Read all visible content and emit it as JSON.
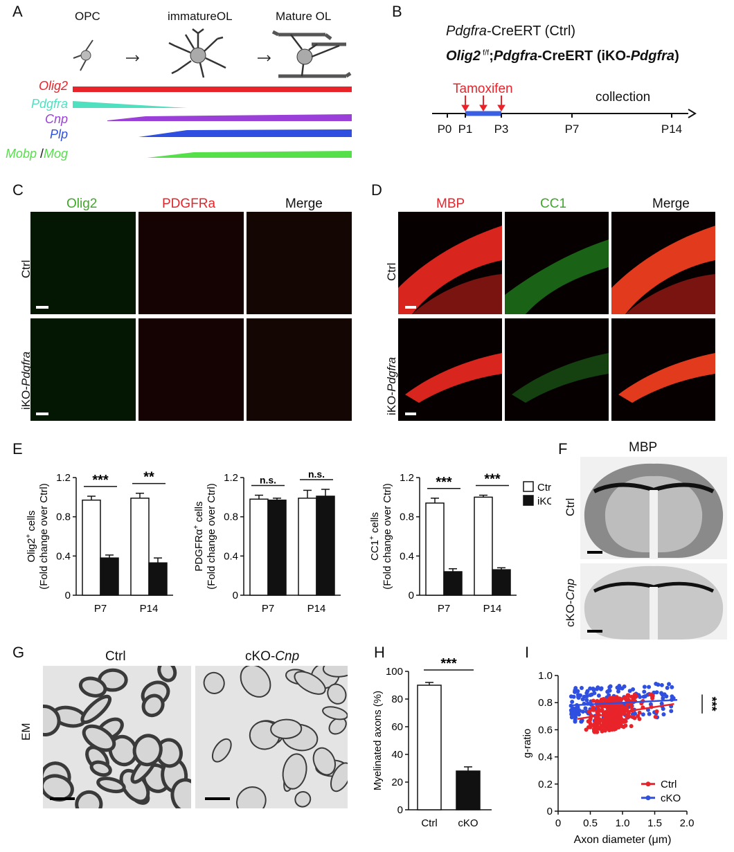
{
  "panels": {
    "a": "A",
    "b": "B",
    "c": "C",
    "d": "D",
    "e": "E",
    "f": "F",
    "g": "G",
    "h": "H",
    "i": "I"
  },
  "panelA": {
    "stages": [
      "OPC",
      "immatureOL",
      "Mature OL"
    ],
    "genes": [
      {
        "name": "Olig2",
        "color": "#e8242a"
      },
      {
        "name": "Pdgfra",
        "color": "#4fe0c0"
      },
      {
        "name": "Cnp",
        "color": "#9a3fd8"
      },
      {
        "name": "Plp",
        "color": "#2f4fe0"
      },
      {
        "name": "Mobp",
        "sep": "/",
        "name2": "Mog",
        "color": "#55e04a"
      }
    ]
  },
  "panelB": {
    "line1_italic": "Pdgfra",
    "line1_rest": "-CreERT  (Ctrl)",
    "line2_a": "Olig2",
    "line2_sup": " f/f",
    "line2_b": ";",
    "line2_c": "Pdgfra",
    "line2_d": "-CreERT  (iKO-",
    "line2_e": "Pdgfra",
    "line2_f": ")",
    "tamoxifen": "Tamoxifen",
    "collection": "collection",
    "ticks": [
      "P0",
      "P1",
      "P3",
      "P7",
      "P14"
    ]
  },
  "panelC": {
    "headers": [
      "Olig2",
      "PDGFRa",
      "Merge"
    ],
    "rows": [
      "Ctrl",
      "iKO-",
      "Pdgfra"
    ]
  },
  "panelD": {
    "headers": [
      "MBP",
      "CC1",
      "Merge"
    ],
    "rows": [
      "Ctrl",
      "iKO-",
      "Pdgfra"
    ]
  },
  "panelF": {
    "title": "MBP",
    "rows": [
      "Ctrl",
      "cKO-",
      "Cnp"
    ]
  },
  "panelG": {
    "headers": [
      "Ctrl",
      "cKO-",
      "Cnp"
    ],
    "row": "EM"
  },
  "colors": {
    "ctrl_bar": "#ffffff",
    "iko_bar": "#111111",
    "ctrl_dot": "#e8242a",
    "cko_dot": "#2f4fe0"
  },
  "chart_data": [
    {
      "type": "bar",
      "id": "E1",
      "ylabel_line1": "Olig2",
      "ylabel_sup": "+",
      "ylabel_line1_rest": " cells",
      "ylabel_line2": "(Fold change over Ctrl)",
      "categories": [
        "P7",
        "P14"
      ],
      "series": [
        {
          "name": "Ctrl",
          "values": [
            0.97,
            0.99
          ],
          "errors": [
            0.04,
            0.05
          ]
        },
        {
          "name": "iKO",
          "values": [
            0.38,
            0.33
          ],
          "errors": [
            0.03,
            0.05
          ]
        }
      ],
      "yticks": [
        "0",
        "0.4",
        "0.8",
        "1.2"
      ],
      "ylim": [
        0,
        1.2
      ],
      "significance": [
        "***",
        "**"
      ]
    },
    {
      "type": "bar",
      "id": "E2",
      "ylabel_line1": "PDGFRα",
      "ylabel_sup": "+",
      "ylabel_line1_rest": " cells",
      "ylabel_line2": "(Fold change over Ctrl)",
      "categories": [
        "P7",
        "P14"
      ],
      "series": [
        {
          "name": "Ctrl",
          "values": [
            0.98,
            0.99
          ],
          "errors": [
            0.04,
            0.08
          ]
        },
        {
          "name": "iKO",
          "values": [
            0.97,
            1.01
          ],
          "errors": [
            0.02,
            0.07
          ]
        }
      ],
      "yticks": [
        "0",
        "0.4",
        "0.8",
        "1.2"
      ],
      "ylim": [
        0,
        1.2
      ],
      "significance": [
        "n.s.",
        "n.s."
      ]
    },
    {
      "type": "bar",
      "id": "E3",
      "ylabel_line1": "CC1",
      "ylabel_sup": "+",
      "ylabel_line1_rest": " cells",
      "ylabel_line2": "(Fold change over Ctrl)",
      "categories": [
        "P7",
        "P14"
      ],
      "series": [
        {
          "name": "Ctrl",
          "values": [
            0.94,
            1.0
          ],
          "errors": [
            0.05,
            0.02
          ]
        },
        {
          "name": "iKO",
          "values": [
            0.24,
            0.26
          ],
          "errors": [
            0.03,
            0.02
          ]
        }
      ],
      "yticks": [
        "0",
        "0.4",
        "0.8",
        "1.2"
      ],
      "ylim": [
        0,
        1.2
      ],
      "significance": [
        "***",
        "***"
      ],
      "legend": [
        "Ctrl",
        "iKO"
      ]
    },
    {
      "type": "bar",
      "id": "H",
      "ylabel": "Myelinated axons (%)",
      "categories": [
        "Ctrl",
        "cKO"
      ],
      "values": [
        90,
        28
      ],
      "errors": [
        2,
        3
      ],
      "yticks": [
        "0",
        "20",
        "40",
        "60",
        "80",
        "100"
      ],
      "ylim": [
        0,
        100
      ],
      "significance": "***"
    },
    {
      "type": "scatter",
      "id": "I",
      "xlabel": "Axon diameter (μm)",
      "ylabel": "g-ratio",
      "xticks": [
        "0",
        "0.5",
        "1.0",
        "1.5",
        "2.0"
      ],
      "yticks": [
        "0",
        "0.2",
        "0.4",
        "0.6",
        "0.8",
        "1.0"
      ],
      "xlim": [
        0,
        2.0
      ],
      "ylim": [
        0,
        1.0
      ],
      "series": [
        {
          "name": "Ctrl",
          "color": "#e8242a",
          "x_range": [
            0.3,
            1.8
          ],
          "y_range": [
            0.56,
            0.86
          ],
          "fit": [
            [
              0.3,
              0.68
            ],
            [
              1.8,
              0.79
            ]
          ]
        },
        {
          "name": "cKO",
          "color": "#2f4fe0",
          "x_range": [
            0.2,
            1.85
          ],
          "y_range": [
            0.66,
            0.98
          ],
          "fit": [
            [
              0.2,
              0.78
            ],
            [
              1.85,
              0.82
            ]
          ]
        }
      ],
      "significance": "***",
      "legend": [
        "Ctrl",
        "cKO"
      ]
    }
  ]
}
